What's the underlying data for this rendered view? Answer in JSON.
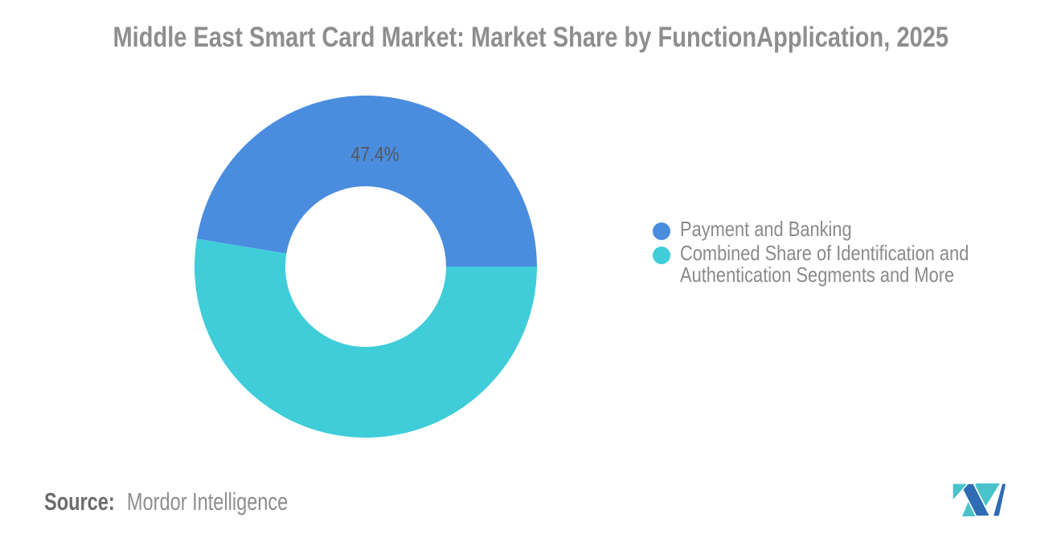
{
  "title": "Middle East Smart Card Market: Market Share by FunctionApplication, 2025",
  "chart_data": {
    "type": "pie",
    "subtype": "donut",
    "title": "Middle East Smart Card Market: Market Share by FunctionApplication, 2025",
    "slices": [
      {
        "label": "Payment and Banking",
        "value": 47.4,
        "color": "#4A8DDF",
        "data_label": "47.4%"
      },
      {
        "label": "Combined Share of Identification and Authentication Segments and More",
        "value": 52.6,
        "color": "#3FCDD9",
        "data_label": ""
      }
    ],
    "data_label_color": "#54585C",
    "donut_hole_ratio": 0.47,
    "start_position": "right",
    "direction": "counterclockwise",
    "legend_position": "right",
    "background": "#FFFFFF"
  },
  "legend": {
    "items": [
      {
        "color": "#4A8DDF",
        "lines": [
          "Payment and Banking"
        ]
      },
      {
        "color": "#3FCDD9",
        "lines": [
          "Combined Share of Identification and",
          "Authentication Segments and More"
        ]
      }
    ]
  },
  "source": {
    "label": "Source:",
    "value": "Mordor Intelligence"
  },
  "logo": {
    "name": "mordor-intelligence-logo",
    "teal": "#49C2C9",
    "blue": "#2E6CB4"
  }
}
